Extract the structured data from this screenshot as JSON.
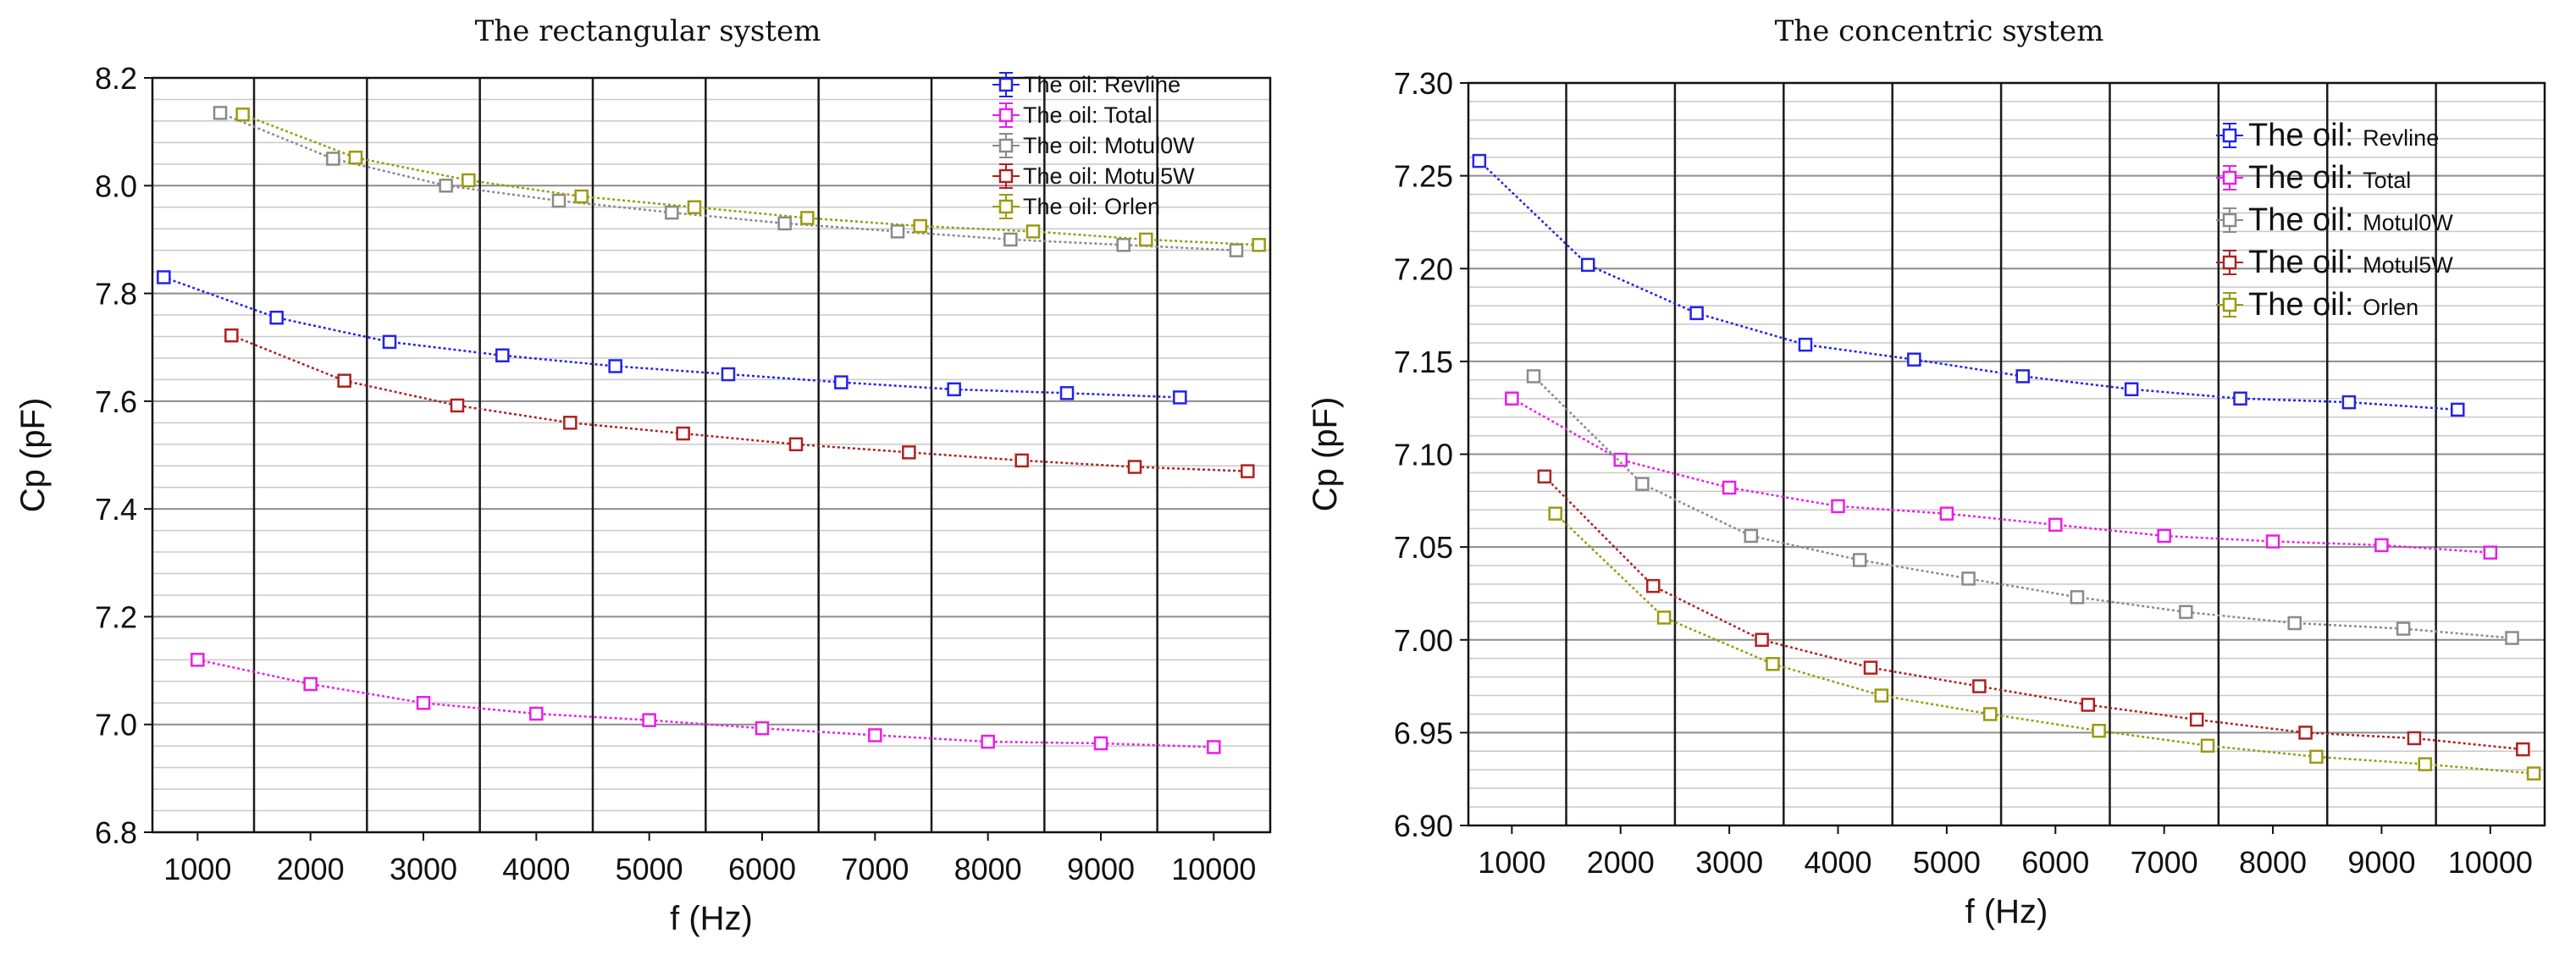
{
  "chart_data": [
    {
      "type": "line",
      "title": "The rectangular system",
      "xlabel": "f (Hz)",
      "ylabel": "Cp (pF)",
      "xlim": [
        600,
        10500
      ],
      "ylim": [
        6.8,
        8.2
      ],
      "xticks": [
        1000,
        2000,
        3000,
        4000,
        5000,
        6000,
        7000,
        8000,
        9000,
        10000
      ],
      "yticks": [
        "6.8",
        "7.0",
        "7.2",
        "7.4",
        "7.6",
        "7.8",
        "8.0",
        "8.2"
      ],
      "xtick_labels": [
        "1000",
        "2000",
        "3000",
        "4000",
        "5000",
        "6000",
        "7000",
        "8000",
        "9000",
        "10000"
      ],
      "legend_prefix": "The oil:",
      "series": [
        {
          "name": "Revline",
          "color": "#2323e8",
          "x": [
            700,
            1700,
            2700,
            3700,
            4700,
            5700,
            6700,
            7700,
            8700,
            9700
          ],
          "y": [
            7.83,
            7.755,
            7.71,
            7.685,
            7.665,
            7.65,
            7.635,
            7.622,
            7.615,
            7.607
          ]
        },
        {
          "name": "Total",
          "color": "#e81ee8",
          "x": [
            1000,
            2000,
            3000,
            4000,
            5000,
            6000,
            7000,
            8000,
            9000,
            10000
          ],
          "y": [
            7.12,
            7.075,
            7.04,
            7.02,
            7.008,
            6.993,
            6.98,
            6.968,
            6.965,
            6.958
          ]
        },
        {
          "name": "Motul0W",
          "color": "#8a8a8a",
          "x": [
            1200,
            2200,
            3200,
            4200,
            5200,
            6200,
            7200,
            8200,
            9200,
            10200
          ],
          "y": [
            8.135,
            8.05,
            8.0,
            7.972,
            7.95,
            7.93,
            7.915,
            7.9,
            7.89,
            7.88
          ]
        },
        {
          "name": "Motul5W",
          "color": "#b02020",
          "x": [
            1300,
            2300,
            3300,
            4300,
            5300,
            6300,
            7300,
            8300,
            9300,
            10300
          ],
          "y": [
            7.722,
            7.638,
            7.592,
            7.56,
            7.54,
            7.52,
            7.505,
            7.49,
            7.478,
            7.47
          ]
        },
        {
          "name": "Orlen",
          "color": "#9a9a10",
          "x": [
            1400,
            2400,
            3400,
            4400,
            5400,
            6400,
            7400,
            8400,
            9400,
            10400
          ],
          "y": [
            8.132,
            8.052,
            8.01,
            7.98,
            7.96,
            7.94,
            7.925,
            7.915,
            7.9,
            7.89
          ]
        }
      ]
    },
    {
      "type": "line",
      "title": "The concentric system",
      "xlabel": "f (Hz)",
      "ylabel": "Cp (pF)",
      "xlim": [
        600,
        10500
      ],
      "ylim": [
        6.9,
        7.3
      ],
      "xticks": [
        1000,
        2000,
        3000,
        4000,
        5000,
        6000,
        7000,
        8000,
        9000,
        10000
      ],
      "yticks": [
        "6.90",
        "6.95",
        "7.00",
        "7.05",
        "7.10",
        "7.15",
        "7.20",
        "7.25",
        "7.30"
      ],
      "xtick_labels": [
        "1000",
        "2000",
        "3000",
        "4000",
        "5000",
        "6000",
        "7000",
        "8000",
        "9000",
        "10000"
      ],
      "legend_prefix": "The oil:",
      "series": [
        {
          "name": "Revline",
          "color": "#2323e8",
          "x": [
            700,
            1700,
            2700,
            3700,
            4700,
            5700,
            6700,
            7700,
            8700,
            9700
          ],
          "y": [
            7.258,
            7.202,
            7.176,
            7.159,
            7.151,
            7.142,
            7.135,
            7.13,
            7.128,
            7.124
          ]
        },
        {
          "name": "Total",
          "color": "#e81ee8",
          "x": [
            1000,
            2000,
            3000,
            4000,
            5000,
            6000,
            7000,
            8000,
            9000,
            10000
          ],
          "y": [
            7.13,
            7.097,
            7.082,
            7.072,
            7.068,
            7.062,
            7.056,
            7.053,
            7.051,
            7.047
          ]
        },
        {
          "name": "Motul0W",
          "color": "#8a8a8a",
          "x": [
            1200,
            2200,
            3200,
            4200,
            5200,
            6200,
            7200,
            8200,
            9200,
            10200
          ],
          "y": [
            7.142,
            7.084,
            7.056,
            7.043,
            7.033,
            7.023,
            7.015,
            7.009,
            7.006,
            7.001
          ]
        },
        {
          "name": "Motul5W",
          "color": "#b02020",
          "x": [
            1300,
            2300,
            3300,
            4300,
            5300,
            6300,
            7300,
            8300,
            9300,
            10300
          ],
          "y": [
            7.088,
            7.029,
            7.0,
            6.985,
            6.975,
            6.965,
            6.957,
            6.95,
            6.947,
            6.941
          ]
        },
        {
          "name": "Orlen",
          "color": "#9a9a10",
          "x": [
            1400,
            2400,
            3400,
            4400,
            5400,
            6400,
            7400,
            8400,
            9400,
            10400
          ],
          "y": [
            7.068,
            7.012,
            6.987,
            6.97,
            6.96,
            6.951,
            6.943,
            6.937,
            6.933,
            6.928
          ]
        }
      ]
    }
  ]
}
